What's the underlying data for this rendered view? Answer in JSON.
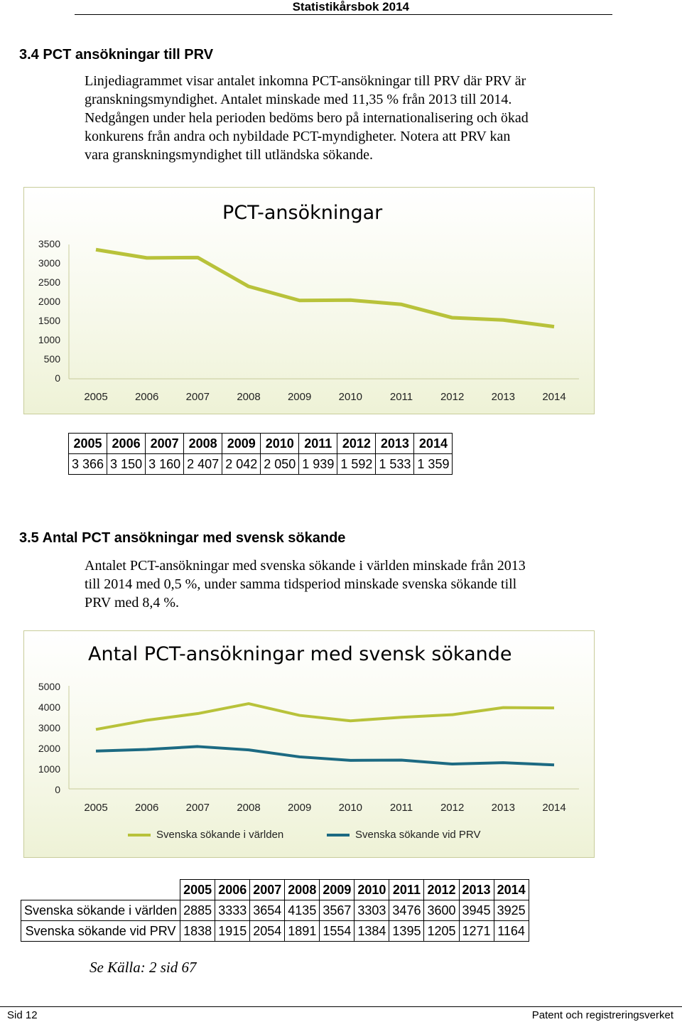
{
  "header": {
    "title": "Statistikårsbok 2014"
  },
  "section1": {
    "heading": "3.4   PCT ansökningar till PRV",
    "lines": [
      "Linjediagrammet visar antalet inkomna PCT-ansökningar till PRV där PRV är",
      "granskningsmyndighet. Antalet minskade med 11,35 % från 2013 till 2014.",
      "Nedgången under hela perioden bedöms bero på internationalisering och ökad",
      "konkurens från andra och nybildade PCT-myndigheter. Notera att PRV kan",
      "vara granskningsmyndighet till utländska sökande."
    ]
  },
  "chart1": {
    "chart_data": {
      "type": "line",
      "title": "PCT-ansökningar",
      "categories": [
        "2005",
        "2006",
        "2007",
        "2008",
        "2009",
        "2010",
        "2011",
        "2012",
        "2013",
        "2014"
      ],
      "values": [
        3366,
        3150,
        3160,
        2407,
        2042,
        2050,
        1939,
        1592,
        1533,
        1359
      ],
      "yticks": [
        "3500",
        "3000",
        "2500",
        "2000",
        "1500",
        "1000",
        "500",
        "0"
      ],
      "ylim": [
        0,
        3500
      ],
      "color": "#b8c23a",
      "grid": false
    }
  },
  "table1": {
    "years": [
      "2005",
      "2006",
      "2007",
      "2008",
      "2009",
      "2010",
      "2011",
      "2012",
      "2013",
      "2014"
    ],
    "values": [
      "3 366",
      "3 150",
      "3 160",
      "2 407",
      "2 042",
      "2 050",
      "1 939",
      "1 592",
      "1 533",
      "1 359"
    ]
  },
  "section2": {
    "heading": "3.5   Antal PCT ansökningar med svensk sökande",
    "lines": [
      "Antalet PCT-ansökningar med svenska sökande i världen minskade från 2013",
      "till 2014 med 0,5 %, under samma tidsperiod minskade svenska sökande till",
      "PRV med 8,4 %."
    ]
  },
  "chart2": {
    "chart_data": {
      "type": "line",
      "title": "Antal PCT-ansökningar med svensk sökande",
      "categories": [
        "2005",
        "2006",
        "2007",
        "2008",
        "2009",
        "2010",
        "2011",
        "2012",
        "2013",
        "2014"
      ],
      "series": [
        {
          "name": "Svenska sökande  i världen",
          "values": [
            2885,
            3333,
            3654,
            4135,
            3567,
            3303,
            3476,
            3600,
            3945,
            3925
          ],
          "color": "#b8c23a"
        },
        {
          "name": "Svenska sökande  vid PRV",
          "values": [
            1838,
            1915,
            2054,
            1891,
            1554,
            1384,
            1395,
            1205,
            1271,
            1164
          ],
          "color": "#1c6a82"
        }
      ],
      "yticks": [
        "5000",
        "4000",
        "3000",
        "2000",
        "1000",
        "0"
      ],
      "ylim": [
        0,
        5000
      ],
      "legend": "bottom",
      "grid": false
    }
  },
  "table2": {
    "years": [
      "2005",
      "2006",
      "2007",
      "2008",
      "2009",
      "2010",
      "2011",
      "2012",
      "2013",
      "2014"
    ],
    "rows": [
      {
        "label": "Svenska sökande i världen",
        "values": [
          "2885",
          "3333",
          "3654",
          "4135",
          "3567",
          "3303",
          "3476",
          "3600",
          "3945",
          "3925"
        ]
      },
      {
        "label": "Svenska sökande vid PRV",
        "values": [
          "1838",
          "1915",
          "2054",
          "1891",
          "1554",
          "1384",
          "1395",
          "1205",
          "1271",
          "1164"
        ]
      }
    ]
  },
  "source": "Se Källa: 2 sid 67",
  "footer": {
    "left": "Sid 12",
    "right": "Patent och registreringsverket"
  }
}
